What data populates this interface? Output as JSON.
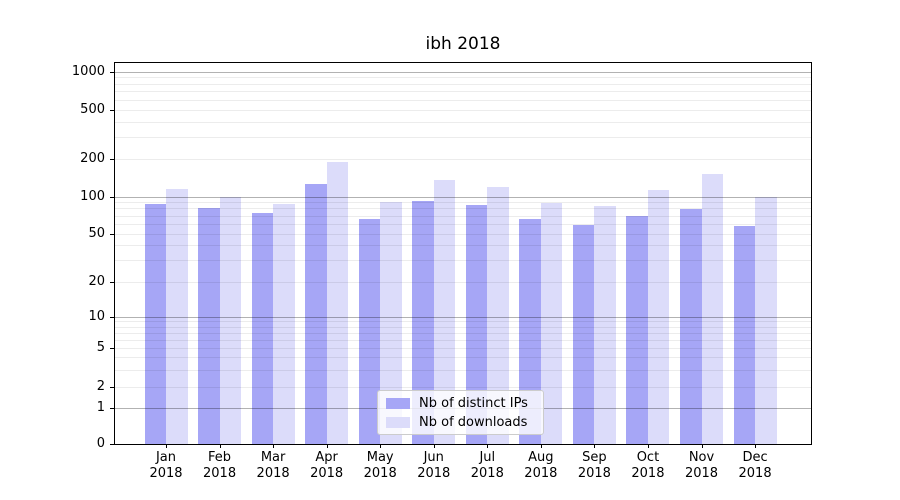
{
  "title": "ibh 2018",
  "chart_data": {
    "type": "bar",
    "title": "ibh 2018",
    "categories": [
      "Jan 2018",
      "Feb 2018",
      "Mar 2018",
      "Apr 2018",
      "May 2018",
      "Jun 2018",
      "Jul 2018",
      "Aug 2018",
      "Sep 2018",
      "Oct 2018",
      "Nov 2018",
      "Dec 2018"
    ],
    "series": [
      {
        "name": "Nb of distinct IPs",
        "color": "#a6a6f6",
        "values": [
          87,
          81,
          74,
          126,
          66,
          92,
          86,
          65,
          59,
          70,
          79,
          58
        ]
      },
      {
        "name": "Nb of downloads",
        "color": "#dcdcfa",
        "values": [
          115,
          100,
          87,
          188,
          90,
          136,
          119,
          88,
          83,
          113,
          152,
          100
        ]
      }
    ],
    "yscale": "symlog",
    "yticks": [
      1000,
      500,
      200,
      100,
      50,
      20,
      10,
      5,
      2,
      1,
      0
    ],
    "ylim": [
      0,
      1170
    ],
    "xlabel": "",
    "ylabel": "",
    "grid": "both",
    "legend_position": "lower center"
  }
}
